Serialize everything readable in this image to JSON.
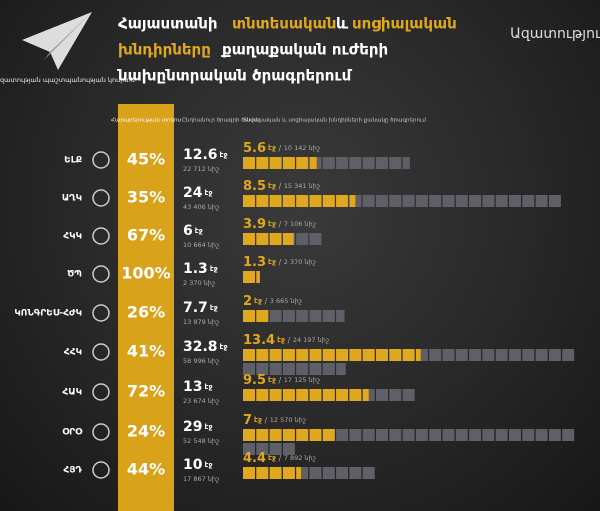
{
  "logo": {
    "text": "Խոսքի ազատության պաշտպանության կոմիտե"
  },
  "watermark": "Ազատություն",
  "title": {
    "line1a": "Հայաստանի",
    "line1b": "տնտեսական",
    "line1c": "և",
    "line1d": "սոցիալական",
    "line2a": "խնդիրները",
    "line2b": "քաղաքական ուժերի",
    "line3": "նախընտրական ծրագրերում"
  },
  "headers": {
    "percent": "Հարաբերության տոկոս",
    "total": "Ընդհանուր ծրագրի ծավալ",
    "econ": "Տնտեսական և սոցիալական խնդիրների քանակը ծրագրերում"
  },
  "units": {
    "pages": "էջ",
    "chars": "նիշ"
  },
  "rows": [
    {
      "party": "ԵԼՔ",
      "percent": "45%",
      "pages": 12.6,
      "chars": "22 712",
      "econ_pages": 5.6,
      "econ_chars": "10 142"
    },
    {
      "party": "ԱՂԿ",
      "percent": "35%",
      "pages": 24,
      "chars": "43 406",
      "econ_pages": 8.5,
      "econ_chars": "15 341"
    },
    {
      "party": "ՀԿԿ",
      "percent": "67%",
      "pages": 6,
      "chars": "10 664",
      "econ_pages": 3.9,
      "econ_chars": "7 106"
    },
    {
      "party": "ԾՊ",
      "percent": "100%",
      "pages": 1.3,
      "chars": "2 370",
      "econ_pages": 1.3,
      "econ_chars": "2 370"
    },
    {
      "party": "ԿՈՆԳՐԵՍ-ՀԺԿ",
      "percent": "26%",
      "pages": 7.7,
      "chars": "13 879",
      "econ_pages": 2,
      "econ_chars": "3 665"
    },
    {
      "party": "ՀՀԿ",
      "percent": "41%",
      "pages": 32.8,
      "chars": "58 996",
      "econ_pages": 13.4,
      "econ_chars": "24 197"
    },
    {
      "party": "ՀԱԿ",
      "percent": "72%",
      "pages": 13,
      "chars": "23 674",
      "econ_pages": 9.5,
      "econ_chars": "17 125"
    },
    {
      "party": "ՕՐՕ",
      "percent": "24%",
      "pages": 29,
      "chars": "52 548",
      "econ_pages": 7,
      "econ_chars": "12 570"
    },
    {
      "party": "ՀՅԴ",
      "percent": "44%",
      "pages": 10,
      "chars": "17 867",
      "econ_pages": 4.4,
      "econ_chars": "7 892"
    }
  ]
}
